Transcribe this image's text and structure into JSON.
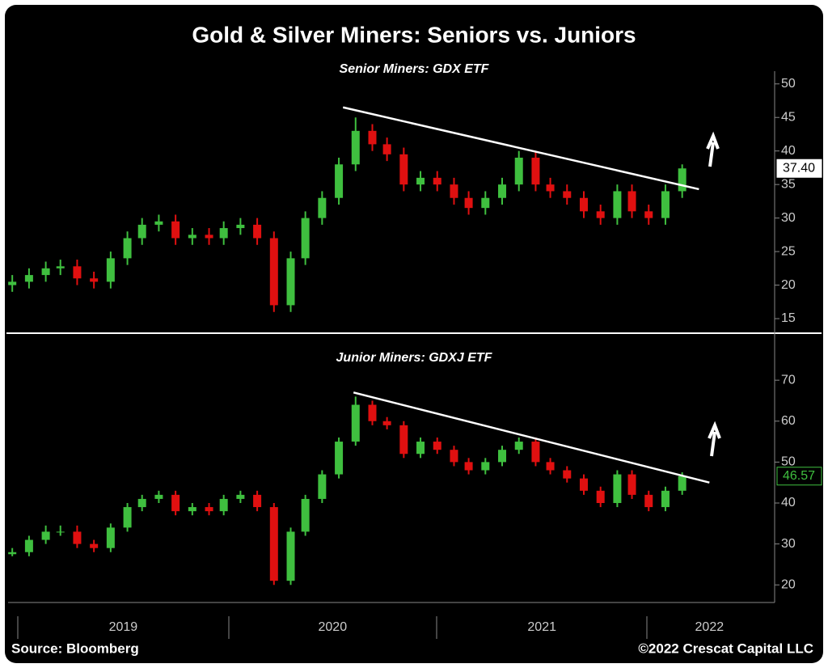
{
  "page": {
    "title": "Gold & Silver Miners: Seniors vs. Juniors",
    "source": "Source: Bloomberg",
    "credit": "©2022 Crescat Capital LLC"
  },
  "chart_data": [
    {
      "type": "candlestick",
      "subtitle": "Senior Miners: GDX ETF",
      "up_color": "#3fbf3f",
      "down_color": "#e01010",
      "x": [
        2018.97,
        2019.05,
        2019.13,
        2019.2,
        2019.28,
        2019.36,
        2019.44,
        2019.52,
        2019.59,
        2019.67,
        2019.75,
        2019.83,
        2019.91,
        2019.98,
        2020.06,
        2020.14,
        2020.22,
        2020.3,
        2020.37,
        2020.45,
        2020.53,
        2020.61,
        2020.69,
        2020.76,
        2020.84,
        2020.92,
        2021.0,
        2021.08,
        2021.15,
        2021.23,
        2021.31,
        2021.39,
        2021.47,
        2021.54,
        2021.62,
        2021.7,
        2021.78,
        2021.86,
        2021.93,
        2022.01,
        2022.09,
        2022.17
      ],
      "open": [
        20,
        20.5,
        21.5,
        22.5,
        22.8,
        21,
        20.5,
        24,
        27,
        29,
        29.5,
        27,
        27.5,
        27,
        28.5,
        29,
        27,
        17,
        24,
        30,
        33,
        38,
        43,
        41,
        39.5,
        35,
        36,
        35,
        33,
        31.5,
        33,
        35,
        39,
        35,
        34,
        33,
        31,
        30,
        34,
        31,
        30,
        34
      ],
      "high": [
        21.5,
        22.5,
        23.5,
        23.8,
        23.8,
        22,
        25,
        28,
        30,
        30.5,
        30.5,
        28.5,
        28.5,
        29.5,
        30,
        30,
        28,
        25,
        31,
        34,
        39,
        45,
        44,
        42,
        40.5,
        37,
        37,
        36,
        34,
        34,
        36,
        40,
        40,
        36,
        35,
        34,
        32,
        35,
        35,
        32,
        35,
        38
      ],
      "low": [
        19,
        19.5,
        20.5,
        21.5,
        20,
        19.5,
        19.5,
        23,
        26,
        28,
        26,
        26,
        26,
        26,
        27.5,
        26,
        16,
        16,
        23,
        29,
        32,
        37,
        40,
        38.5,
        34,
        34,
        34,
        32,
        30.5,
        30.5,
        32,
        34,
        34,
        33,
        32,
        30,
        29,
        29,
        30,
        29,
        29,
        33
      ],
      "close": [
        20.5,
        21.5,
        22.5,
        22.8,
        21,
        20.5,
        24,
        27,
        29,
        29.5,
        27,
        27.5,
        27,
        28.5,
        29,
        27,
        17,
        24,
        30,
        33,
        38,
        43,
        41,
        39.5,
        35,
        36,
        35,
        33,
        31.5,
        33,
        35,
        39,
        35,
        34,
        33,
        31,
        30,
        34,
        31,
        30,
        34,
        37.4
      ],
      "last_value": {
        "value": 37.4,
        "label": "37.40"
      },
      "trendline": {
        "x": [
          2020.55,
          2022.25
        ],
        "y": [
          46.5,
          34.3
        ]
      },
      "xlim": [
        2018.95,
        2022.6
      ],
      "ylim": [
        13.07,
        51.9
      ],
      "yticks": [
        15,
        20,
        25,
        30,
        35,
        40,
        45,
        50
      ]
    },
    {
      "type": "candlestick",
      "subtitle": "Junior Miners: GDXJ ETF",
      "up_color": "#3fbf3f",
      "down_color": "#e01010",
      "x": [
        2018.97,
        2019.05,
        2019.13,
        2019.2,
        2019.28,
        2019.36,
        2019.44,
        2019.52,
        2019.59,
        2019.67,
        2019.75,
        2019.83,
        2019.91,
        2019.98,
        2020.06,
        2020.14,
        2020.22,
        2020.3,
        2020.37,
        2020.45,
        2020.53,
        2020.61,
        2020.69,
        2020.76,
        2020.84,
        2020.92,
        2021.0,
        2021.08,
        2021.15,
        2021.23,
        2021.31,
        2021.39,
        2021.47,
        2021.54,
        2021.62,
        2021.7,
        2021.78,
        2021.86,
        2021.93,
        2022.01,
        2022.09,
        2022.17
      ],
      "open": [
        27.5,
        28,
        31,
        33,
        33,
        30,
        29,
        34,
        39,
        41,
        42,
        38,
        39,
        38,
        41,
        42,
        39,
        21,
        33,
        41,
        47,
        55,
        64,
        60,
        59,
        52,
        55,
        53,
        50,
        48,
        50,
        53,
        55,
        50,
        48,
        46,
        43,
        40,
        47,
        42,
        39,
        43
      ],
      "high": [
        29,
        32,
        34.5,
        34.5,
        34.5,
        31,
        35,
        40,
        42,
        43,
        43,
        40,
        40,
        42,
        43,
        43,
        40,
        34,
        42,
        48,
        56,
        66,
        65,
        61,
        60,
        56,
        56,
        54,
        51,
        51,
        54,
        56,
        56,
        51,
        49,
        47,
        44,
        48,
        48,
        43,
        44,
        47.5
      ],
      "low": [
        27,
        27,
        30,
        32,
        29,
        28,
        28,
        33,
        38,
        40,
        37,
        37,
        37,
        37,
        40,
        38,
        20,
        20,
        32,
        40,
        46,
        54,
        59,
        58,
        51,
        51,
        52,
        49,
        47,
        47,
        49,
        52,
        49,
        47,
        45,
        42,
        39,
        39,
        41,
        38,
        38,
        42
      ],
      "close": [
        28,
        31,
        33,
        33,
        30,
        29,
        34,
        39,
        41,
        42,
        38,
        39,
        38,
        41,
        42,
        39,
        21,
        33,
        41,
        47,
        55,
        64,
        60,
        59,
        52,
        55,
        53,
        50,
        48,
        50,
        53,
        55,
        50,
        48,
        46,
        43,
        40,
        47,
        42,
        39,
        43,
        46.57
      ],
      "last_value": {
        "value": 46.57,
        "label": "46.57"
      },
      "trendline": {
        "x": [
          2020.6,
          2022.3
        ],
        "y": [
          67,
          45
        ]
      },
      "xlim": [
        2018.95,
        2022.6
      ],
      "ylim": [
        15.7,
        80.3
      ],
      "yticks": [
        20,
        30,
        40,
        50,
        60,
        70
      ],
      "xticks": [
        {
          "value": 2019.5,
          "label": "2019"
        },
        {
          "value": 2020.5,
          "label": "2020"
        },
        {
          "value": 2021.5,
          "label": "2021"
        },
        {
          "value": 2022.3,
          "label": "2022"
        }
      ]
    }
  ]
}
